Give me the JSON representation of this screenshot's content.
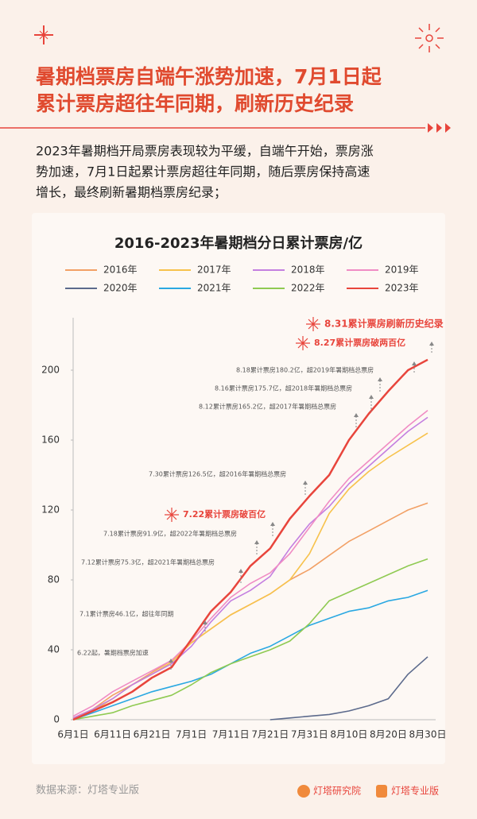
{
  "header": {
    "title_lines": [
      "暑期档票房自端午涨势加速，7月1日起",
      "累计票房超往年同期，刷新历史纪录"
    ]
  },
  "description_lines": [
    "2023年暑期档开局票房表现较为平缓，自端午开始，票房涨",
    "势加速，7月1日起累计票房超往年同期，随后票房保持高速",
    "增长，最终刷新暑期档票房纪录；"
  ],
  "chart_data": {
    "type": "line",
    "title": "2016-2023年暑期档分日累计票房/亿",
    "categories": [
      "6月1日",
      null,
      "6月11日",
      null,
      "6月21日",
      null,
      "7月1日",
      null,
      "7月11日",
      null,
      "7月21日",
      null,
      "7月31日",
      null,
      "8月10日",
      null,
      "8月20日",
      null,
      "8月30日"
    ],
    "series": [
      {
        "name": "2016年",
        "color": "#f2a065",
        "values": [
          1,
          6,
          14,
          20,
          27,
          34,
          44,
          52,
          60,
          66,
          72,
          80,
          86,
          94,
          102,
          108,
          114,
          120,
          124
        ]
      },
      {
        "name": "2017年",
        "color": "#f7c24c",
        "values": [
          1,
          5,
          12,
          20,
          26,
          33,
          44,
          52,
          60,
          66,
          72,
          80,
          95,
          118,
          132,
          142,
          150,
          157,
          164
        ]
      },
      {
        "name": "2018年",
        "color": "#c47fe0",
        "values": [
          1,
          6,
          12,
          20,
          26,
          32,
          42,
          56,
          68,
          74,
          82,
          98,
          112,
          122,
          135,
          145,
          155,
          165,
          173
        ]
      },
      {
        "name": "2019年",
        "color": "#f08cc4",
        "values": [
          2,
          8,
          16,
          22,
          28,
          34,
          45,
          58,
          70,
          78,
          84,
          95,
          110,
          125,
          138,
          148,
          158,
          168,
          177
        ]
      },
      {
        "name": "2020年",
        "color": "#5c6a8c",
        "values": [
          null,
          null,
          null,
          null,
          null,
          null,
          null,
          null,
          null,
          null,
          0,
          1,
          2,
          3,
          5,
          8,
          12,
          26,
          36
        ]
      },
      {
        "name": "2021年",
        "color": "#2aa8e2",
        "values": [
          0,
          4,
          8,
          12,
          16,
          19,
          22,
          26,
          32,
          38,
          42,
          48,
          54,
          58,
          62,
          64,
          68,
          70,
          74
        ]
      },
      {
        "name": "2022年",
        "color": "#8fca52",
        "values": [
          0,
          2,
          4,
          8,
          11,
          14,
          20,
          27,
          32,
          36,
          40,
          45,
          55,
          68,
          73,
          78,
          83,
          88,
          92
        ]
      },
      {
        "name": "2023年",
        "color": "#e8453c",
        "values": [
          0,
          5,
          10,
          16,
          24,
          30,
          46,
          62,
          73,
          88,
          98,
          115,
          128,
          140,
          160,
          175,
          188,
          200,
          206
        ]
      }
    ],
    "ylim": [
      0,
      230
    ],
    "yticks": [
      0,
      40,
      80,
      120,
      160,
      200
    ],
    "grid": false,
    "annotations": [
      "8.31累计票房刷新历史纪录",
      "8.27累计票房破两百亿",
      "8.18累计票房180.2亿，超2019年暑期档总票房",
      "8.16累计票房175.7亿，超2018年暑期档总票房",
      "8.12累计票房165.2亿，超2017年暑期档总票房",
      "7.30累计票房126.5亿，超2016年暑期档总票房",
      "7.22累计票房破百亿",
      "7.18累计票房91.9亿，超2022年暑期档总票房",
      "7.12累计票房75.3亿，超2021年暑期档总票房",
      "7.1累计票房46.1亿，超往年同期",
      "6.22起，暑期档票房加速"
    ]
  },
  "footer": {
    "source": "数据来源：灯塔专业版",
    "logos": [
      "灯塔研究院",
      "灯塔专业版"
    ]
  }
}
